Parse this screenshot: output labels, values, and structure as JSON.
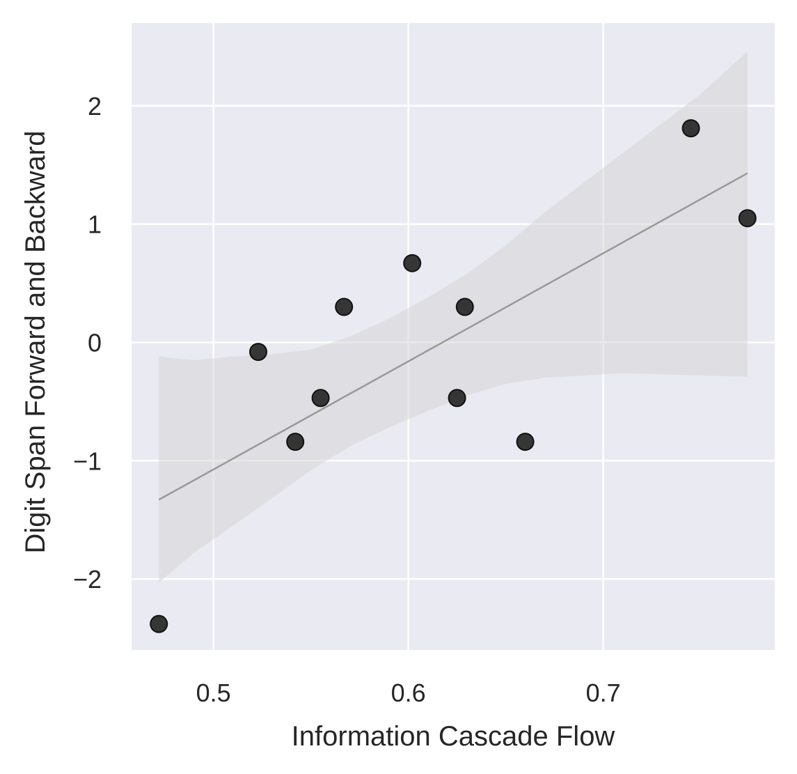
{
  "chart_data": {
    "type": "scatter",
    "title": "",
    "xlabel": "Information Cascade Flow",
    "ylabel": "Digit Span Forward and Backward",
    "xlim": [
      0.458,
      0.788
    ],
    "ylim": [
      -2.6,
      2.7
    ],
    "x_ticks": [
      0.5,
      0.6,
      0.7
    ],
    "x_tick_labels": [
      "0.5",
      "0.6",
      "0.7"
    ],
    "y_ticks": [
      -2,
      -1,
      0,
      1,
      2
    ],
    "y_tick_labels": [
      "−2",
      "−1",
      "0",
      "1",
      "2"
    ],
    "grid": true,
    "legend": "none",
    "points": [
      {
        "x": 0.472,
        "y": -2.38
      },
      {
        "x": 0.523,
        "y": -0.08
      },
      {
        "x": 0.542,
        "y": -0.84
      },
      {
        "x": 0.555,
        "y": -0.47
      },
      {
        "x": 0.567,
        "y": 0.3
      },
      {
        "x": 0.602,
        "y": 0.67
      },
      {
        "x": 0.625,
        "y": -0.47
      },
      {
        "x": 0.629,
        "y": 0.3
      },
      {
        "x": 0.66,
        "y": -0.84
      },
      {
        "x": 0.745,
        "y": 1.81
      },
      {
        "x": 0.774,
        "y": 1.05
      }
    ],
    "regression_line": {
      "x": [
        0.472,
        0.774
      ],
      "y": [
        -1.33,
        1.43
      ]
    },
    "confidence_band": {
      "x": [
        0.472,
        0.49,
        0.51,
        0.53,
        0.55,
        0.57,
        0.59,
        0.61,
        0.63,
        0.65,
        0.67,
        0.69,
        0.71,
        0.73,
        0.75,
        0.774
      ],
      "lower": [
        -2.03,
        -1.78,
        -1.55,
        -1.32,
        -1.08,
        -0.88,
        -0.72,
        -0.58,
        -0.45,
        -0.35,
        -0.3,
        -0.28,
        -0.26,
        -0.27,
        -0.28,
        -0.29
      ],
      "upper": [
        -0.12,
        -0.15,
        -0.12,
        -0.1,
        -0.06,
        0.05,
        0.2,
        0.38,
        0.58,
        0.82,
        1.1,
        1.35,
        1.6,
        1.85,
        2.1,
        2.46
      ]
    },
    "colors": {
      "background": "#eaeaf2",
      "grid": "#ffffff",
      "point_fill": "#262626",
      "point_edge": "#111111",
      "line": "#999999",
      "band": "#d3d3d3"
    }
  }
}
